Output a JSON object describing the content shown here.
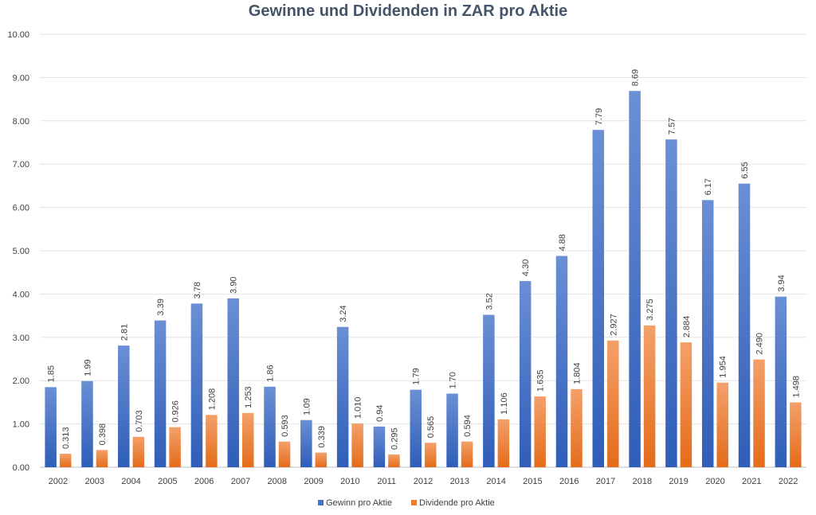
{
  "chart_data": {
    "type": "bar",
    "title": "Gewinne und Dividenden in ZAR pro Aktie",
    "xlabel": "",
    "ylabel": "",
    "ylim": [
      0,
      10
    ],
    "y_ticks": [
      "0.00",
      "1.00",
      "2.00",
      "3.00",
      "4.00",
      "5.00",
      "6.00",
      "7.00",
      "8.00",
      "9.00",
      "10.00"
    ],
    "grid": true,
    "legend_position": "bottom",
    "categories": [
      "2002",
      "2003",
      "2004",
      "2005",
      "2006",
      "2007",
      "2008",
      "2009",
      "2010",
      "2011",
      "2012",
      "2013",
      "2014",
      "2015",
      "2016",
      "2017",
      "2018",
      "2019",
      "2020",
      "2021",
      "2022"
    ],
    "series": [
      {
        "name": "Gewinn pro Aktie",
        "color": "#4472c4",
        "values": [
          1.85,
          1.99,
          2.81,
          3.39,
          3.78,
          3.9,
          1.86,
          1.09,
          3.24,
          0.94,
          1.79,
          1.7,
          3.52,
          4.3,
          4.88,
          7.79,
          8.69,
          7.57,
          6.17,
          6.55,
          3.94
        ],
        "labels": [
          "1.85",
          "1.99",
          "2.81",
          "3.39",
          "3.78",
          "3.90",
          "1.86",
          "1.09",
          "3.24",
          "0.94",
          "1.79",
          "1.70",
          "3.52",
          "4.30",
          "4.88",
          "7.79",
          "8.69",
          "7.57",
          "6.17",
          "6.55",
          "3.94"
        ]
      },
      {
        "name": "Dividende pro Aktie",
        "color": "#ed7d31",
        "values": [
          0.313,
          0.398,
          0.703,
          0.926,
          1.208,
          1.253,
          0.593,
          0.339,
          1.01,
          0.295,
          0.565,
          0.594,
          1.106,
          1.635,
          1.804,
          2.927,
          3.275,
          2.884,
          1.954,
          2.49,
          1.498
        ],
        "labels": [
          "0.313",
          "0.398",
          "0.703",
          "0.926",
          "1.208",
          "1.253",
          "0.593",
          "0.339",
          "1.010",
          "0.295",
          "0.565",
          "0.594",
          "1.106",
          "1.635",
          "1.804",
          "2.927",
          "3.275",
          "2.884",
          "1.954",
          "2.490",
          "1.498"
        ]
      }
    ]
  }
}
